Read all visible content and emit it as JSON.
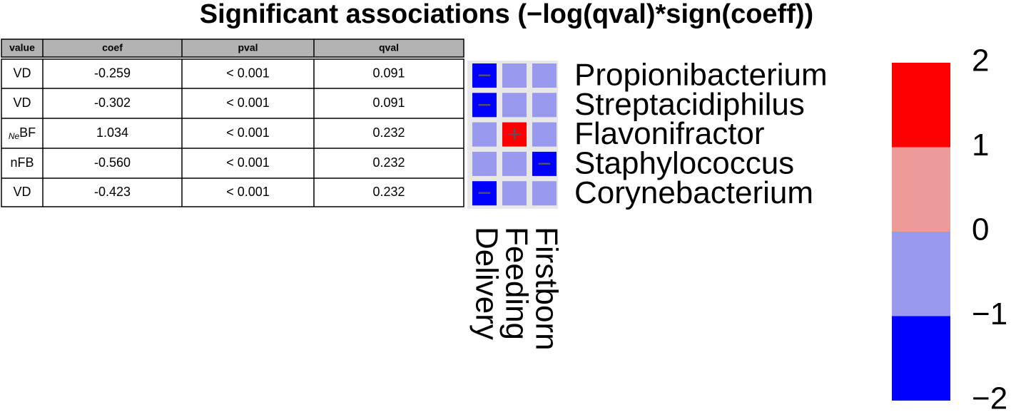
{
  "title": "Significant associations (−log(qval)*sign(coeff))",
  "table": {
    "columns": [
      "value",
      "coef",
      "pval",
      "qval"
    ],
    "rows": [
      [
        "VD",
        "-0.259",
        "< 0.001",
        "0.091"
      ],
      [
        "VD",
        "-0.302",
        "< 0.001",
        "0.091"
      ],
      [
        {
          "sub": "Ne",
          "main": "BF"
        },
        "1.034",
        "< 0.001",
        "0.232"
      ],
      [
        "nFB",
        "-0.560",
        "< 0.001",
        "0.232"
      ],
      [
        "VD",
        "-0.423",
        "< 0.001",
        "0.232"
      ]
    ]
  },
  "chart_data": {
    "type": "heatmap",
    "rows": [
      "Propionibacterium",
      "Streptacidiphilus",
      "Flavonifractor",
      "Staphylococcus",
      "Corynebacterium"
    ],
    "columns": [
      "Delivery",
      "Feeding",
      "Firstborn"
    ],
    "values": [
      [
        -1.5,
        0,
        0
      ],
      [
        -1.5,
        0,
        0
      ],
      [
        0,
        1.5,
        0
      ],
      [
        0,
        0,
        -1.5
      ],
      [
        -1.5,
        0,
        0
      ]
    ],
    "cell_labels": [
      [
        "−",
        null,
        null
      ],
      [
        "−",
        null,
        null
      ],
      [
        null,
        "+",
        null
      ],
      [
        null,
        null,
        "−"
      ],
      [
        "−",
        null,
        null
      ]
    ],
    "colorbar": {
      "bins": [
        -2,
        -1,
        0,
        1,
        2
      ],
      "colors": [
        "#0000ff",
        "#9999ee",
        "#ec9a9a",
        "#ff0000"
      ],
      "ticks": [
        2,
        1,
        0,
        {
          "value": -1,
          "label": "−1"
        },
        {
          "value": -2,
          "label": "−2"
        }
      ]
    }
  }
}
